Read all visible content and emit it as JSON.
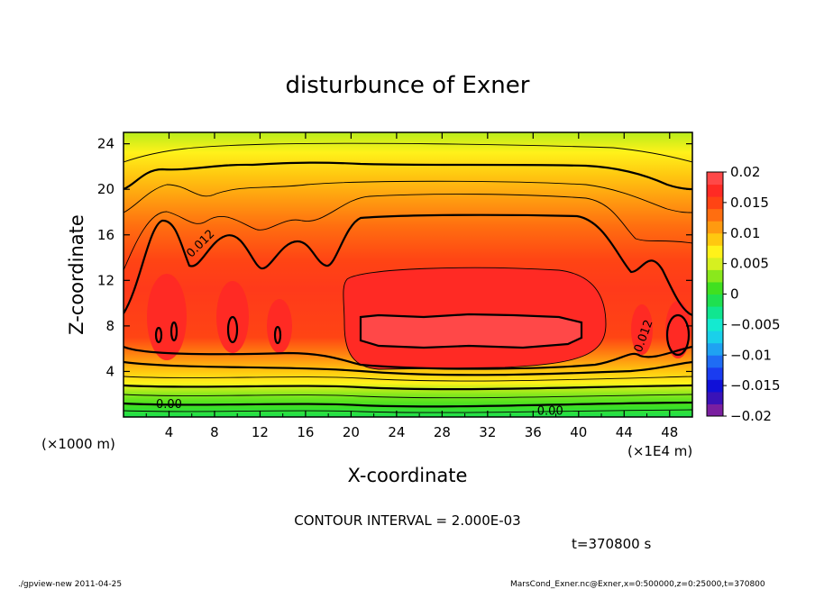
{
  "chart_data": {
    "type": "heatmap",
    "title": "disturbunce of Exner",
    "xlabel": "X-coordinate",
    "ylabel": "Z-coordinate",
    "x_unit_left": "(×1000 m)",
    "x_unit_right": "(×1E4 m)",
    "xlim": [
      0,
      50
    ],
    "ylim": [
      0,
      25
    ],
    "x_ticks": [
      4,
      8,
      12,
      16,
      20,
      24,
      28,
      32,
      36,
      40,
      44,
      48
    ],
    "y_ticks": [
      4,
      8,
      12,
      16,
      20,
      24
    ],
    "x_tick_labels": [
      "4",
      "8",
      "12",
      "16",
      "20",
      "24",
      "28",
      "32",
      "36",
      "40",
      "44",
      "48"
    ],
    "y_tick_labels": [
      "4",
      "8",
      "12",
      "16",
      "20",
      "24"
    ],
    "contour_interval_text": "CONTOUR INTERVAL = 2.000E-03",
    "contour_labels": [
      {
        "text": "0.012",
        "x": 7,
        "z": 15
      },
      {
        "text": "0.012",
        "x": 46,
        "z": 7
      },
      {
        "text": "0.00",
        "x": 4,
        "z": 0.8
      },
      {
        "text": "0.00",
        "x": 37.5,
        "z": 0.2
      }
    ],
    "colorbar": {
      "min": -0.02,
      "max": 0.02,
      "tick_labels": [
        "0.02",
        "0.015",
        "0.01",
        "0.005",
        "0",
        "−0.005",
        "−0.01",
        "−0.015",
        "−0.02"
      ],
      "levels": [
        -0.02,
        -0.018,
        -0.016,
        -0.014,
        -0.012,
        -0.01,
        -0.008,
        -0.006,
        -0.004,
        -0.002,
        0,
        0.002,
        0.004,
        0.006,
        0.008,
        0.01,
        0.012,
        0.014,
        0.016,
        0.018,
        0.02
      ],
      "colors": [
        "#7a1fa0",
        "#3a12b8",
        "#1010d8",
        "#1a3cf0",
        "#1f6cf4",
        "#1fa2f2",
        "#1ad0ea",
        "#14ead0",
        "#10e690",
        "#1fe050",
        "#40e020",
        "#8ae81c",
        "#d6f020",
        "#fff21a",
        "#ffc810",
        "#ff9a10",
        "#ff6e10",
        "#ff4414",
        "#ff2a24",
        "#ff4848"
      ]
    },
    "time_text": "t=370800 s"
  },
  "footer": {
    "left": "./gpview-new  2011-04-25",
    "right": "MarsCond_Exner.nc@Exner,x=0:500000,z=0:25000,t=370800"
  }
}
